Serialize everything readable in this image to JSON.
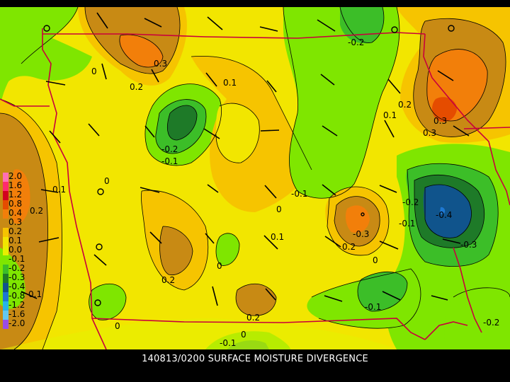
{
  "caption": "140813/0200 SURFACE MOISTURE DIVERGENCE",
  "colors": {
    "background": "#000000",
    "pos_0_1": "#F2E600",
    "pos_0_2": "#F6C400",
    "pos_0_3": "#C88A14",
    "pos_0_4": "#F27F0A",
    "pos_0_8": "#E54C00",
    "pos_1_2": "#C80000",
    "zero": "#E6F000",
    "neg_0_1": "#7FE600",
    "neg_0_2": "#3CBE28",
    "neg_0_3": "#1E7A28",
    "neg_0_4": "#10548C",
    "state_border": "#C8003C",
    "contour": "#000000"
  },
  "legend": [
    {
      "label": "2.0",
      "color": "#FF6FB4"
    },
    {
      "label": "1.6",
      "color": "#FF2A6E"
    },
    {
      "label": "1.2",
      "color": "#D2001E"
    },
    {
      "label": "0.8",
      "color": "#E54C00"
    },
    {
      "label": "0.4",
      "color": "#F27F0A"
    },
    {
      "label": "0.3",
      "color": "#C88A14"
    },
    {
      "label": "0.2",
      "color": "#F6C400"
    },
    {
      "label": "0.1",
      "color": "#F2E600"
    },
    {
      "label": "0.0",
      "color": "#E6F000"
    },
    {
      "label": "-0.1",
      "color": "#7FE600"
    },
    {
      "label": "-0.2",
      "color": "#3CBE28"
    },
    {
      "label": "-0.3",
      "color": "#1E7A28"
    },
    {
      "label": "-0.4",
      "color": "#10548C"
    },
    {
      "label": "-0.8",
      "color": "#1E78D2"
    },
    {
      "label": "-1.2",
      "color": "#28B4E6"
    },
    {
      "label": "-1.6",
      "color": "#64C8F0"
    },
    {
      "label": "-2.0",
      "color": "#9A4CE6"
    }
  ],
  "contour_labels": [
    "0.3",
    "0.2",
    "0",
    "0.1",
    "-0.2",
    "-0.2",
    "-0.1",
    "0",
    "0.1",
    "0.2",
    "0.1",
    "-0.1",
    "0",
    "0.1",
    "0",
    "-0.3",
    "0.2",
    "-0.2",
    "-0.1",
    "-0.4",
    "-0.3",
    "0",
    "0.2",
    "0.2",
    "0.3",
    "0.2",
    "0",
    "-0.1",
    "-0.2",
    "0",
    "-0.1",
    "0.3",
    "0.1"
  ]
}
